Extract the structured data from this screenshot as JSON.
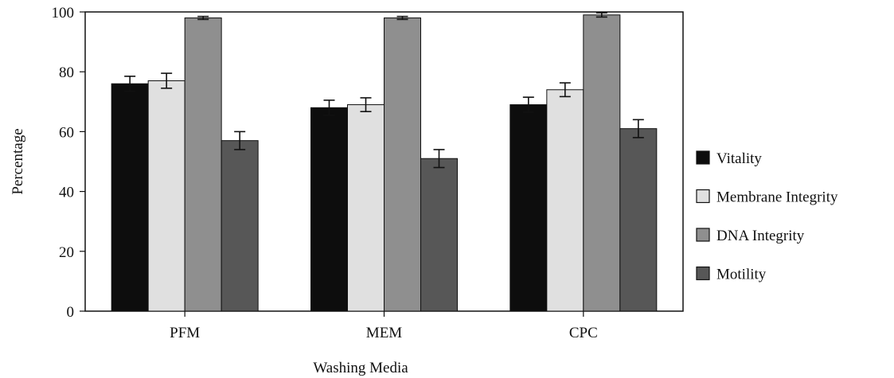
{
  "chart_data": {
    "type": "bar",
    "title": "",
    "xlabel": "Washing Media",
    "ylabel": "Percentage",
    "ylim": [
      0,
      100
    ],
    "yticks": [
      0,
      20,
      40,
      60,
      80,
      100
    ],
    "categories": [
      "PFM",
      "MEM",
      "CPC"
    ],
    "legend_position": "right",
    "grid": false,
    "series": [
      {
        "name": "Vitality",
        "color": "#0d0d0d",
        "values": [
          76,
          68,
          69
        ],
        "errors": [
          2.5,
          2.5,
          2.5
        ]
      },
      {
        "name": "Membrane Integrity",
        "color": "#e0e0e0",
        "values": [
          77,
          69,
          74
        ],
        "errors": [
          2.5,
          2.3,
          2.3
        ]
      },
      {
        "name": "DNA Integrity",
        "color": "#8f8f8f",
        "values": [
          98,
          98,
          99
        ],
        "errors": [
          0.5,
          0.5,
          0.7
        ]
      },
      {
        "name": "Motility",
        "color": "#575757",
        "values": [
          57,
          51,
          61
        ],
        "errors": [
          3,
          3,
          3
        ]
      }
    ]
  }
}
